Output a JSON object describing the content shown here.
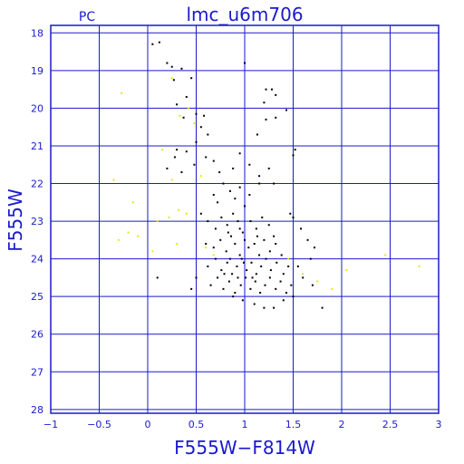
{
  "chart_data": {
    "type": "scatter",
    "panel_label": "PC",
    "title": "lmc_u6m706",
    "xlabel": "F555W−F814W",
    "ylabel": "F555W",
    "xlim": [
      -1,
      3
    ],
    "ylim": [
      28.1,
      17.8
    ],
    "y_inverted": true,
    "grid": true,
    "x_ticks": [
      -1,
      -0.5,
      0,
      0.5,
      1,
      1.5,
      2,
      2.5,
      3
    ],
    "x_tick_labels": [
      "−1",
      "−0.5",
      "0",
      "0.5",
      "1",
      "1.5",
      "2",
      "2.5",
      "3"
    ],
    "y_ticks": [
      18,
      19,
      20,
      21,
      22,
      23,
      24,
      25,
      26,
      27,
      28
    ],
    "y_tick_labels": [
      "18",
      "19",
      "20",
      "21",
      "22",
      "23",
      "24",
      "25",
      "26",
      "27",
      "28"
    ],
    "colors": {
      "frame": "#1a1acc",
      "stars": "#000000",
      "faint_stars": "#e8e800"
    },
    "series": [
      {
        "color": "#000000",
        "points": [
          [
            0.05,
            18.3
          ],
          [
            0.12,
            18.25
          ],
          [
            0.2,
            18.8
          ],
          [
            0.25,
            18.9
          ],
          [
            0.35,
            18.95
          ],
          [
            0.27,
            19.25
          ],
          [
            0.4,
            19.7
          ],
          [
            0.45,
            19.2
          ],
          [
            0.3,
            19.9
          ],
          [
            0.5,
            20.15
          ],
          [
            0.37,
            20.25
          ],
          [
            0.58,
            20.2
          ],
          [
            0.55,
            20.5
          ],
          [
            0.62,
            20.7
          ],
          [
            0.5,
            20.9
          ],
          [
            0.3,
            21.1
          ],
          [
            0.4,
            21.15
          ],
          [
            0.6,
            21.3
          ],
          [
            0.48,
            21.5
          ],
          [
            0.35,
            21.7
          ],
          [
            0.2,
            21.6
          ],
          [
            0.28,
            21.3
          ],
          [
            0.68,
            21.4
          ],
          [
            0.74,
            21.7
          ],
          [
            0.88,
            21.6
          ],
          [
            0.95,
            21.2
          ],
          [
            1.05,
            21.5
          ],
          [
            1.15,
            21.8
          ],
          [
            1.25,
            21.6
          ],
          [
            1.13,
            20.7
          ],
          [
            1.0,
            18.8
          ],
          [
            1.22,
            19.5
          ],
          [
            1.28,
            19.5
          ],
          [
            1.2,
            19.85
          ],
          [
            1.32,
            19.65
          ],
          [
            1.43,
            20.05
          ],
          [
            1.32,
            20.25
          ],
          [
            1.22,
            20.3
          ],
          [
            1.52,
            21.1
          ],
          [
            1.5,
            21.25
          ],
          [
            1.15,
            22.0
          ],
          [
            1.3,
            22.0
          ],
          [
            1.47,
            22.8
          ],
          [
            1.5,
            22.9
          ],
          [
            1.58,
            23.2
          ],
          [
            1.65,
            23.5
          ],
          [
            1.72,
            23.7
          ],
          [
            1.68,
            24.0
          ],
          [
            1.55,
            24.2
          ],
          [
            1.6,
            24.5
          ],
          [
            1.7,
            24.7
          ],
          [
            1.8,
            25.3
          ],
          [
            1.5,
            25.0
          ],
          [
            1.4,
            25.1
          ],
          [
            0.55,
            22.8
          ],
          [
            0.68,
            22.3
          ],
          [
            0.72,
            22.5
          ],
          [
            0.78,
            22.0
          ],
          [
            0.85,
            22.2
          ],
          [
            0.9,
            22.4
          ],
          [
            0.95,
            22.1
          ],
          [
            1.05,
            22.3
          ],
          [
            0.62,
            23.0
          ],
          [
            0.7,
            23.2
          ],
          [
            0.76,
            22.9
          ],
          [
            0.82,
            23.1
          ],
          [
            0.88,
            22.8
          ],
          [
            0.93,
            23.0
          ],
          [
            0.98,
            23.3
          ],
          [
            1.06,
            23.0
          ],
          [
            1.12,
            23.2
          ],
          [
            1.18,
            22.9
          ],
          [
            1.25,
            23.1
          ],
          [
            1.3,
            23.4
          ],
          [
            0.6,
            23.6
          ],
          [
            0.68,
            23.7
          ],
          [
            0.75,
            23.5
          ],
          [
            0.81,
            23.8
          ],
          [
            0.86,
            23.4
          ],
          [
            0.9,
            23.6
          ],
          [
            0.95,
            23.9
          ],
          [
            1.0,
            23.5
          ],
          [
            1.04,
            23.7
          ],
          [
            1.1,
            23.6
          ],
          [
            1.15,
            23.9
          ],
          [
            1.2,
            23.5
          ],
          [
            1.26,
            23.8
          ],
          [
            1.32,
            23.6
          ],
          [
            1.38,
            23.9
          ],
          [
            0.62,
            24.2
          ],
          [
            0.7,
            24.0
          ],
          [
            0.76,
            24.3
          ],
          [
            0.82,
            24.1
          ],
          [
            0.87,
            24.4
          ],
          [
            0.92,
            24.2
          ],
          [
            0.97,
            24.0
          ],
          [
            1.02,
            24.3
          ],
          [
            1.07,
            24.1
          ],
          [
            1.12,
            24.4
          ],
          [
            1.17,
            24.2
          ],
          [
            1.22,
            24.0
          ],
          [
            1.27,
            24.3
          ],
          [
            1.33,
            24.1
          ],
          [
            1.4,
            24.4
          ],
          [
            1.45,
            24.2
          ],
          [
            0.65,
            24.7
          ],
          [
            0.72,
            24.5
          ],
          [
            0.78,
            24.8
          ],
          [
            0.84,
            24.6
          ],
          [
            0.9,
            24.9
          ],
          [
            0.96,
            24.7
          ],
          [
            1.01,
            24.5
          ],
          [
            1.06,
            24.8
          ],
          [
            1.11,
            24.6
          ],
          [
            1.16,
            24.9
          ],
          [
            1.21,
            24.7
          ],
          [
            1.26,
            24.5
          ],
          [
            1.32,
            24.8
          ],
          [
            1.37,
            24.6
          ],
          [
            1.43,
            24.9
          ],
          [
            1.48,
            24.7
          ],
          [
            0.88,
            25.0
          ],
          [
            0.98,
            25.1
          ],
          [
            1.1,
            25.2
          ],
          [
            1.2,
            25.3
          ],
          [
            1.3,
            25.3
          ],
          [
            0.5,
            24.5
          ],
          [
            0.45,
            24.8
          ],
          [
            0.1,
            24.5
          ],
          [
            0.85,
            24.0
          ],
          [
            0.95,
            23.2
          ],
          [
            1.0,
            22.6
          ],
          [
            0.83,
            23.3
          ],
          [
            1.08,
            24.5
          ],
          [
            0.93,
            24.5
          ],
          [
            0.99,
            24.1
          ],
          [
            1.13,
            23.4
          ],
          [
            0.79,
            24.4
          ]
        ]
      },
      {
        "color": "#e8e800",
        "points": [
          [
            -0.35,
            21.9
          ],
          [
            -0.27,
            19.6
          ],
          [
            -0.15,
            22.5
          ],
          [
            -0.1,
            23.4
          ],
          [
            -0.2,
            23.3
          ],
          [
            -0.3,
            23.5
          ],
          [
            0.05,
            23.8
          ],
          [
            0.1,
            23.0
          ],
          [
            0.22,
            22.9
          ],
          [
            0.32,
            22.7
          ],
          [
            0.4,
            22.8
          ],
          [
            0.3,
            23.6
          ],
          [
            0.15,
            21.1
          ],
          [
            0.25,
            21.9
          ],
          [
            0.33,
            20.2
          ],
          [
            0.42,
            20.0
          ],
          [
            0.48,
            20.4
          ],
          [
            0.55,
            21.8
          ],
          [
            0.6,
            23.7
          ],
          [
            0.68,
            23.9
          ],
          [
            1.75,
            24.6
          ],
          [
            1.9,
            24.8
          ],
          [
            2.05,
            24.3
          ],
          [
            2.45,
            23.9
          ],
          [
            2.8,
            24.2
          ],
          [
            1.6,
            24.4
          ],
          [
            1.45,
            24.0
          ],
          [
            0.25,
            19.2
          ]
        ]
      }
    ]
  }
}
